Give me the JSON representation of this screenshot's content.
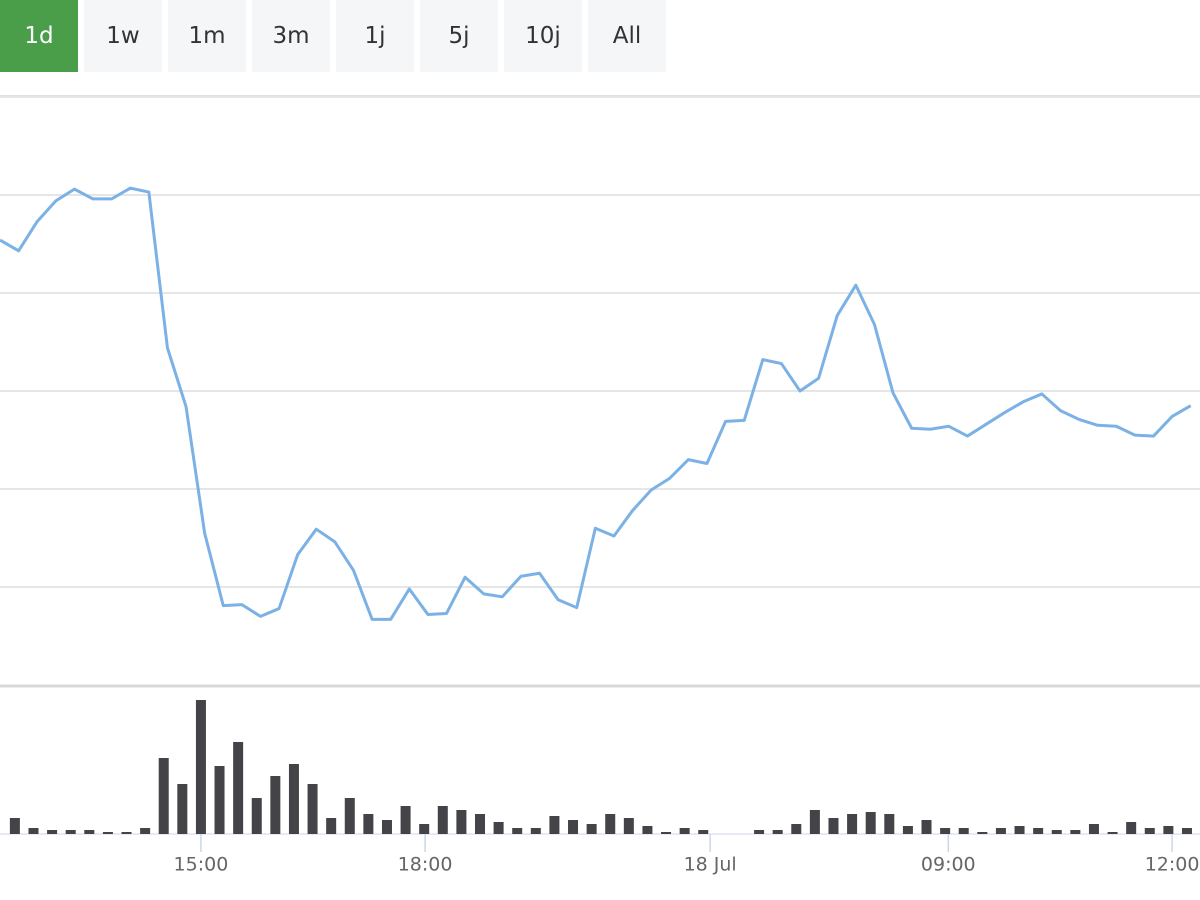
{
  "range_buttons": [
    "1d",
    "1w",
    "1m",
    "3m",
    "1j",
    "5j",
    "10j",
    "All"
  ],
  "chart_data": [
    {
      "type": "line",
      "xlim": [
        0,
        64.5
      ],
      "ylim": [
        0,
        6
      ],
      "yticks": [
        1,
        2,
        3,
        4,
        5,
        6
      ],
      "grid": true,
      "series": [
        {
          "color": "#7cb1e6",
          "values": [
            4.54,
            4.43,
            4.73,
            4.94,
            5.06,
            4.96,
            4.96,
            5.07,
            5.03,
            3.44,
            2.84,
            1.55,
            0.81,
            0.82,
            0.7,
            0.78,
            1.33,
            1.59,
            1.46,
            1.17,
            0.67,
            0.67,
            0.98,
            0.72,
            0.73,
            1.1,
            0.93,
            0.9,
            1.11,
            1.14,
            0.87,
            0.79,
            1.6,
            1.52,
            1.78,
            1.99,
            2.11,
            2.3,
            2.26,
            2.69,
            2.7,
            3.32,
            3.28,
            3.0,
            3.13,
            3.77,
            4.08,
            3.68,
            2.98,
            2.62,
            2.61,
            2.64,
            2.54,
            2.66,
            2.78,
            2.89,
            2.97,
            2.8,
            2.71,
            2.65,
            2.64,
            2.55,
            2.54,
            2.74,
            2.85
          ]
        }
      ]
    },
    {
      "type": "bar",
      "xlim": [
        0,
        64.5
      ],
      "ylim": [
        0,
        140
      ],
      "color": "#434348",
      "values": [
        16,
        6,
        4,
        4,
        4,
        2,
        2,
        6,
        76,
        50,
        134,
        68,
        92,
        36,
        58,
        70,
        50,
        16,
        36,
        20,
        14,
        28,
        10,
        28,
        24,
        20,
        12,
        6,
        6,
        18,
        14,
        10,
        20,
        16,
        8,
        2,
        6,
        4,
        0,
        0,
        4,
        4,
        10,
        24,
        16,
        20,
        22,
        20,
        8,
        14,
        6,
        6,
        2,
        6,
        8,
        6,
        4,
        4,
        10,
        2,
        12,
        6,
        8,
        6
      ],
      "xticks": [
        {
          "value": 10.8,
          "label": "15:00"
        },
        {
          "value": 22.85,
          "label": "18:00"
        },
        {
          "value": 38.17,
          "label": "18 Jul"
        },
        {
          "value": 50.97,
          "label": "09:00"
        },
        {
          "value": 63.0,
          "label": "12:00"
        }
      ]
    }
  ]
}
